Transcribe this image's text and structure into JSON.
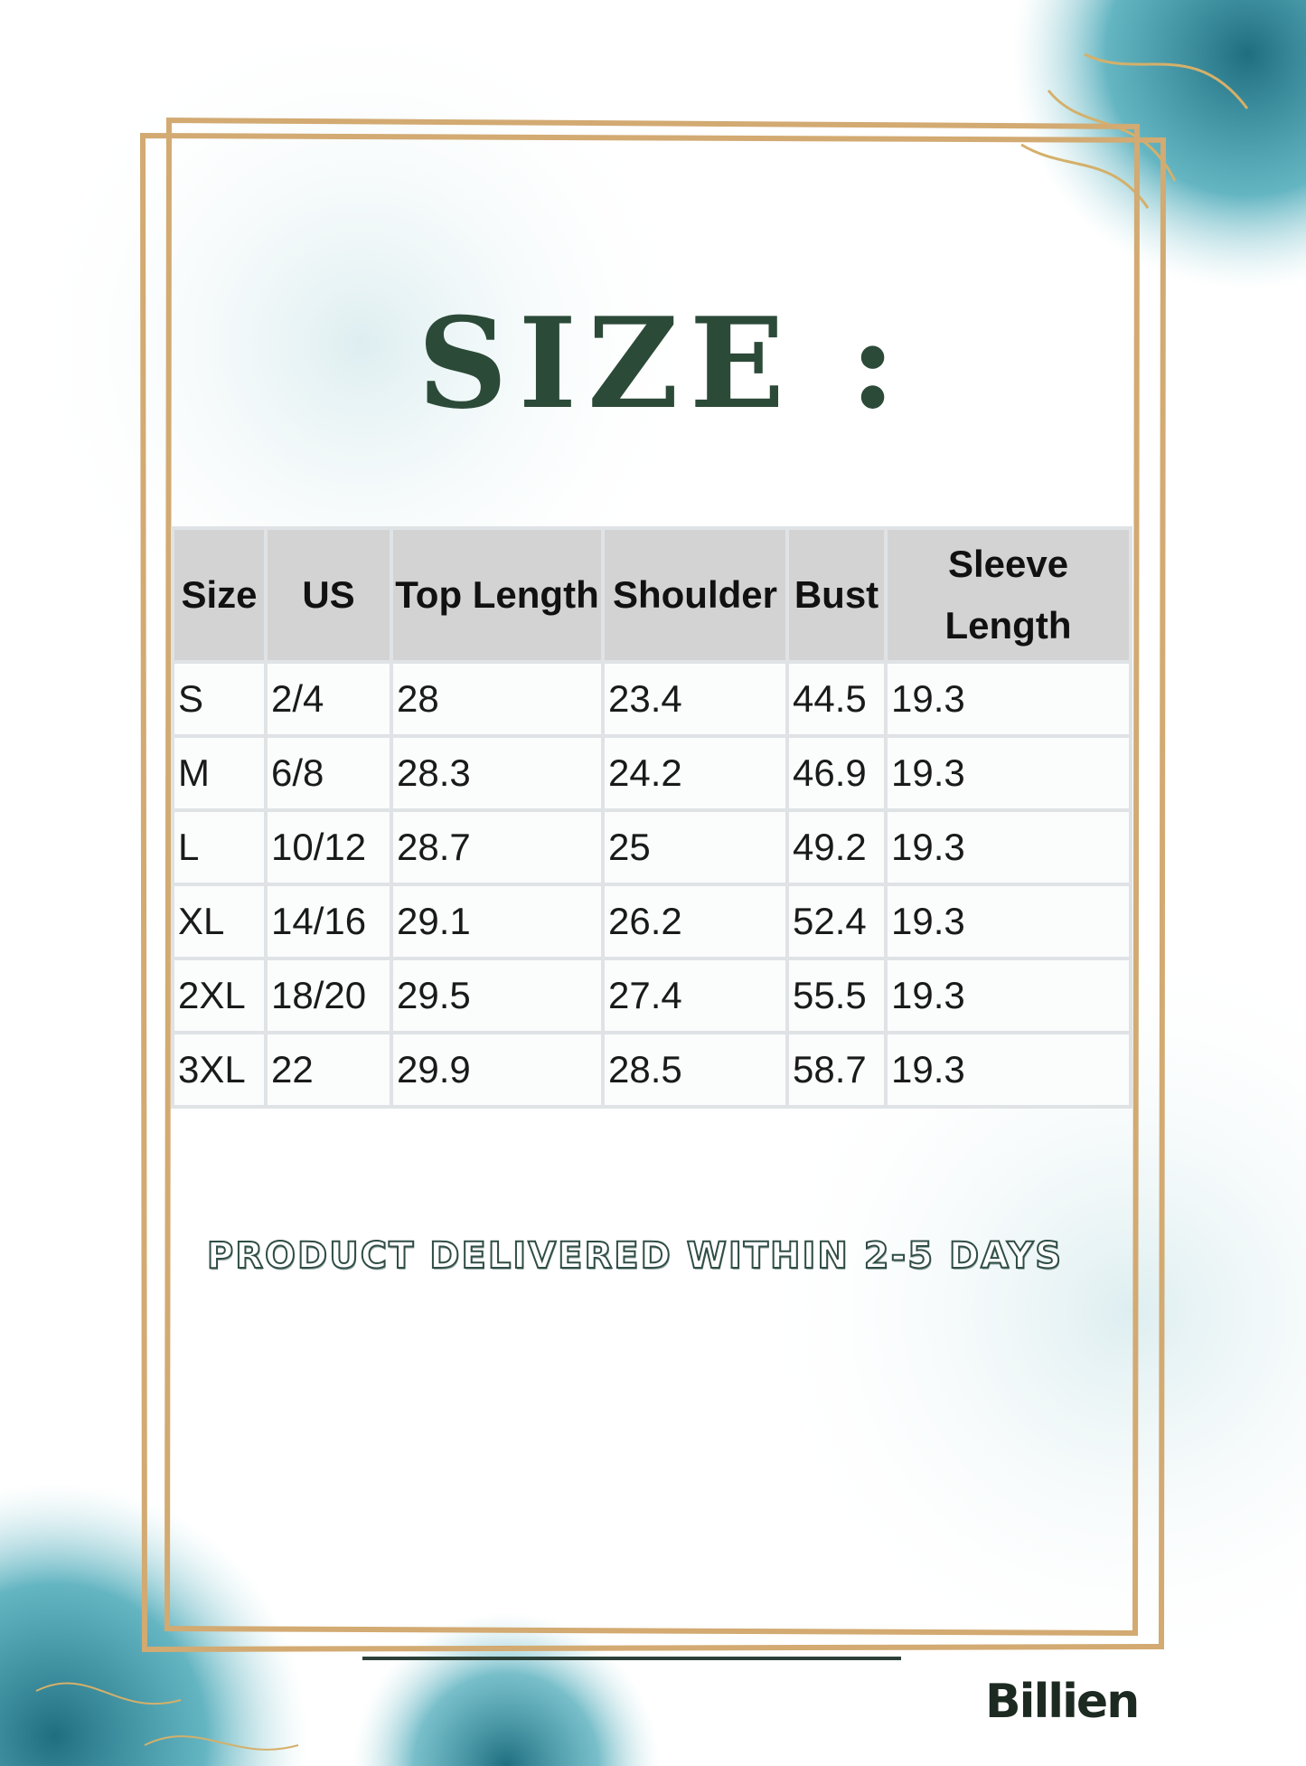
{
  "title": "SIZE :",
  "table": {
    "headers": [
      "Size",
      "US",
      "Top Length",
      "Shoulder",
      "Bust",
      "Sleeve Length"
    ],
    "rows": [
      [
        "S",
        "2/4",
        "28",
        "23.4",
        "44.5",
        "19.3"
      ],
      [
        "M",
        "6/8",
        "28.3",
        "24.2",
        "46.9",
        "19.3"
      ],
      [
        "L",
        "10/12",
        "28.7",
        "25",
        "49.2",
        "19.3"
      ],
      [
        "XL",
        "14/16",
        "29.1",
        "26.2",
        "52.4",
        "19.3"
      ],
      [
        "2XL",
        "18/20",
        "29.5",
        "27.4",
        "55.5",
        "19.3"
      ],
      [
        "3XL",
        "22",
        "29.9",
        "28.5",
        "58.7",
        "19.3"
      ]
    ]
  },
  "delivery_note": "PRODUCT DELIVERED WITHIN 2-5 DAYS",
  "brand": "Billien",
  "colors": {
    "title": "#2c4a38",
    "frame": "#d2aa72",
    "header_bg": "#d3d3d3",
    "ink_teal": "#2a8a98"
  }
}
